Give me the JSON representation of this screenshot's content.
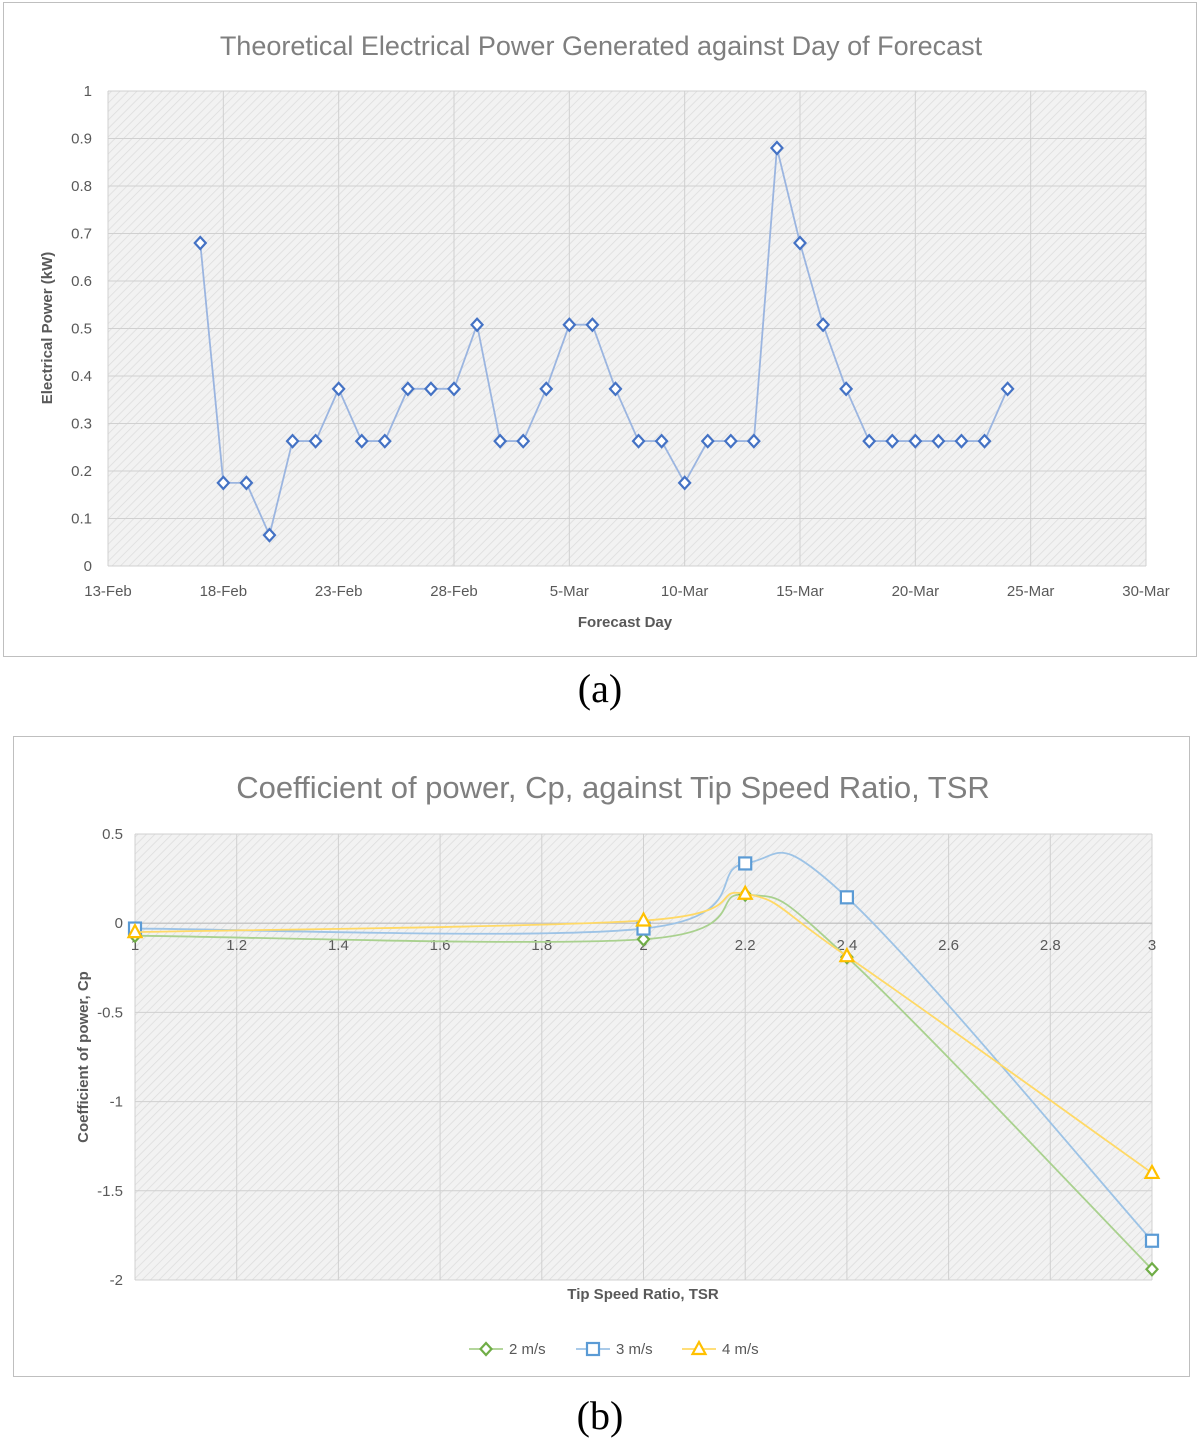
{
  "captions": {
    "a": "(a)",
    "b": "(b)"
  },
  "chart_data": [
    {
      "id": "power",
      "type": "line",
      "title": "Theoretical Electrical Power Generated against Day of Forecast",
      "xlabel": "Forecast Day",
      "ylabel": "Electrical Power (kW)",
      "x_ticks": [
        "13-Feb",
        "18-Feb",
        "23-Feb",
        "28-Feb",
        "5-Mar",
        "10-Mar",
        "15-Mar",
        "20-Mar",
        "25-Mar",
        "30-Mar"
      ],
      "y_ticks": [
        "0",
        "0.1",
        "0.2",
        "0.3",
        "0.4",
        "0.5",
        "0.6",
        "0.7",
        "0.8",
        "0.9",
        "1"
      ],
      "ylim": [
        0,
        1
      ],
      "xlim": [
        "13-Feb",
        "30-Mar"
      ],
      "grid": true,
      "color": "#4472c4",
      "line_color": "#9bb5e0",
      "marker": "diamond",
      "x": [
        "17-Feb",
        "18-Feb",
        "19-Feb",
        "20-Feb",
        "21-Feb",
        "22-Feb",
        "23-Feb",
        "24-Feb",
        "25-Feb",
        "26-Feb",
        "27-Feb",
        "28-Feb",
        "1-Mar",
        "2-Mar",
        "3-Mar",
        "4-Mar",
        "5-Mar",
        "6-Mar",
        "7-Mar",
        "8-Mar",
        "9-Mar",
        "10-Mar",
        "11-Mar",
        "12-Mar",
        "13-Mar",
        "14-Mar",
        "15-Mar",
        "16-Mar",
        "17-Mar",
        "18-Mar",
        "19-Mar",
        "20-Mar",
        "21-Mar",
        "22-Mar",
        "23-Mar",
        "24-Mar"
      ],
      "values": [
        0.68,
        0.175,
        0.175,
        0.065,
        0.263,
        0.263,
        0.373,
        0.263,
        0.263,
        0.373,
        0.373,
        0.373,
        0.508,
        0.263,
        0.263,
        0.373,
        0.508,
        0.508,
        0.373,
        0.263,
        0.263,
        0.175,
        0.263,
        0.263,
        0.263,
        0.88,
        0.68,
        0.508,
        0.373,
        0.263,
        0.263,
        0.263,
        0.263,
        0.263,
        0.263,
        0.373
      ]
    },
    {
      "id": "cp",
      "type": "line",
      "title": "Coefficient of power, Cp, against Tip Speed Ratio, TSR",
      "xlabel": "Tip Speed Ratio, TSR",
      "ylabel": "Coefficient of power, Cp",
      "x_ticks": [
        "1",
        "1.2",
        "1.4",
        "1.6",
        "1.8",
        "2",
        "2.2",
        "2.4",
        "2.6",
        "2.8",
        "3"
      ],
      "y_ticks": [
        "0.5",
        "0",
        "-0.5",
        "-1",
        "-1.5",
        "-2"
      ],
      "xlim": [
        1,
        3
      ],
      "ylim": [
        -2,
        0.5
      ],
      "grid": true,
      "legend": "bottom",
      "x": [
        1,
        2,
        2.2,
        2.4,
        3
      ],
      "series": [
        {
          "name": "2 m/s",
          "values": [
            -0.07,
            -0.09,
            0.16,
            -0.19,
            -1.94
          ],
          "color": "#70ad47",
          "line_color": "#a9d18e",
          "marker": "diamond"
        },
        {
          "name": "3 m/s",
          "values": [
            -0.03,
            -0.03,
            0.335,
            0.145,
            -1.78
          ],
          "color": "#5b9bd5",
          "line_color": "#9dc3e6",
          "marker": "square"
        },
        {
          "name": "4 m/s",
          "values": [
            -0.05,
            0.015,
            0.165,
            -0.185,
            -1.4
          ],
          "color": "#ffc000",
          "line_color": "#ffd966",
          "marker": "triangle"
        }
      ]
    }
  ]
}
